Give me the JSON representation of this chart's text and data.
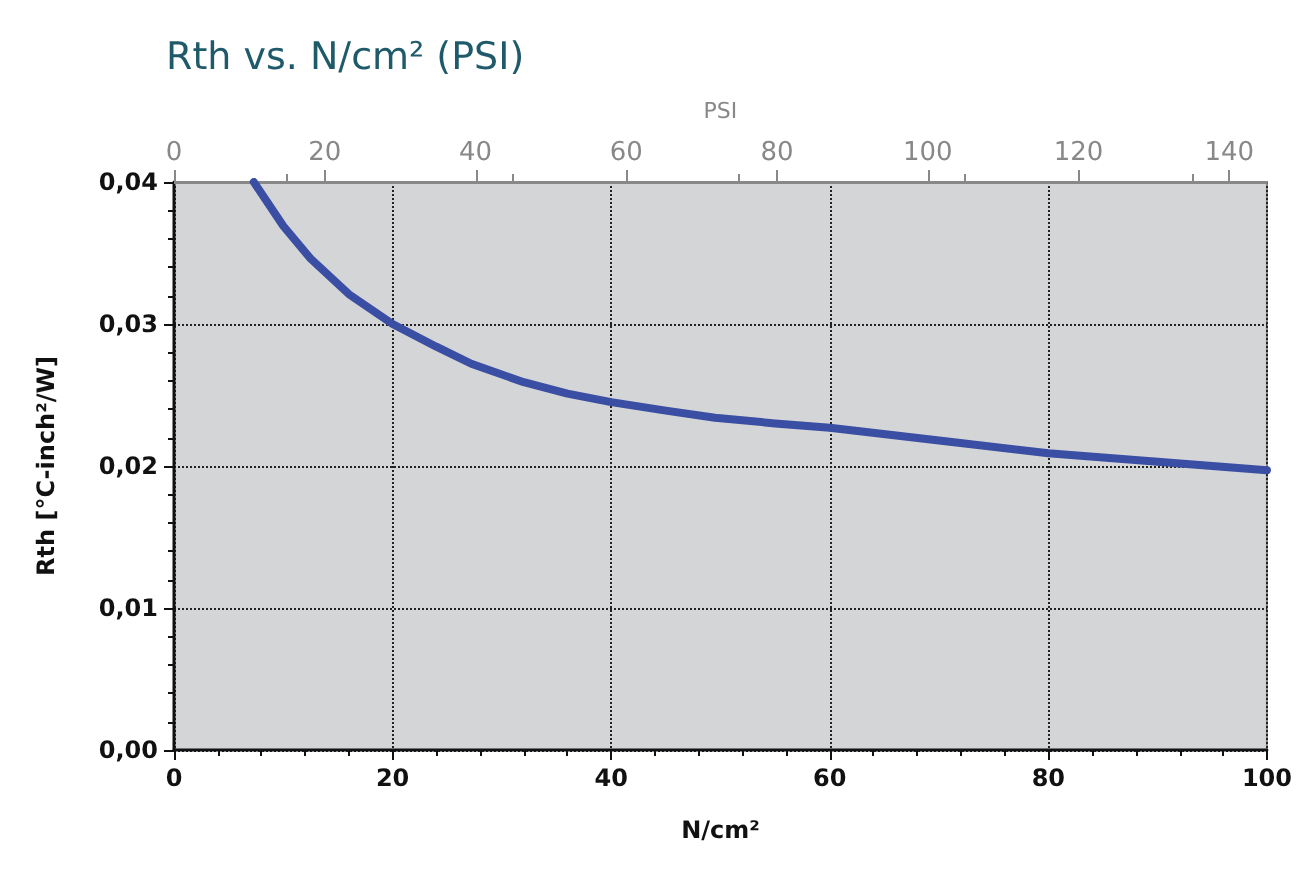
{
  "chart_data": {
    "type": "line",
    "title": "Rth vs. N/cm² (PSI)",
    "xlabel": "N/cm²",
    "x2label": "PSI",
    "ylabel": "Rth [°C-inch²/W]",
    "x": [
      7.3,
      10,
      12.5,
      16,
      20,
      24,
      27.2,
      32,
      36,
      40,
      45,
      49.5,
      55,
      60,
      70,
      80,
      90,
      100
    ],
    "series": [
      {
        "color": "#3a4ea3",
        "values": [
          0.04,
          0.0369,
          0.0346,
          0.0321,
          0.03,
          0.0284,
          0.0272,
          0.0259,
          0.0251,
          0.0245,
          0.0239,
          0.0234,
          0.023,
          0.0227,
          0.0218,
          0.0209,
          0.0203,
          0.0197
        ]
      }
    ],
    "xlim": [
      0,
      100
    ],
    "xticks": [
      0,
      20,
      40,
      60,
      80,
      100
    ],
    "x2lim": [
      0,
      145
    ],
    "x2ticks": [
      0,
      20,
      40,
      60,
      80,
      100,
      120,
      140
    ],
    "ylim": [
      0,
      0.04
    ],
    "yticks": [
      {
        "value": 0,
        "label": "0,00"
      },
      {
        "value": 0.01,
        "label": "0,01"
      },
      {
        "value": 0.02,
        "label": "0,02"
      },
      {
        "value": 0.03,
        "label": "0,03"
      },
      {
        "value": 0.04,
        "label": "0,04"
      }
    ],
    "grid": true,
    "marker": "none",
    "line_style": "solid"
  }
}
